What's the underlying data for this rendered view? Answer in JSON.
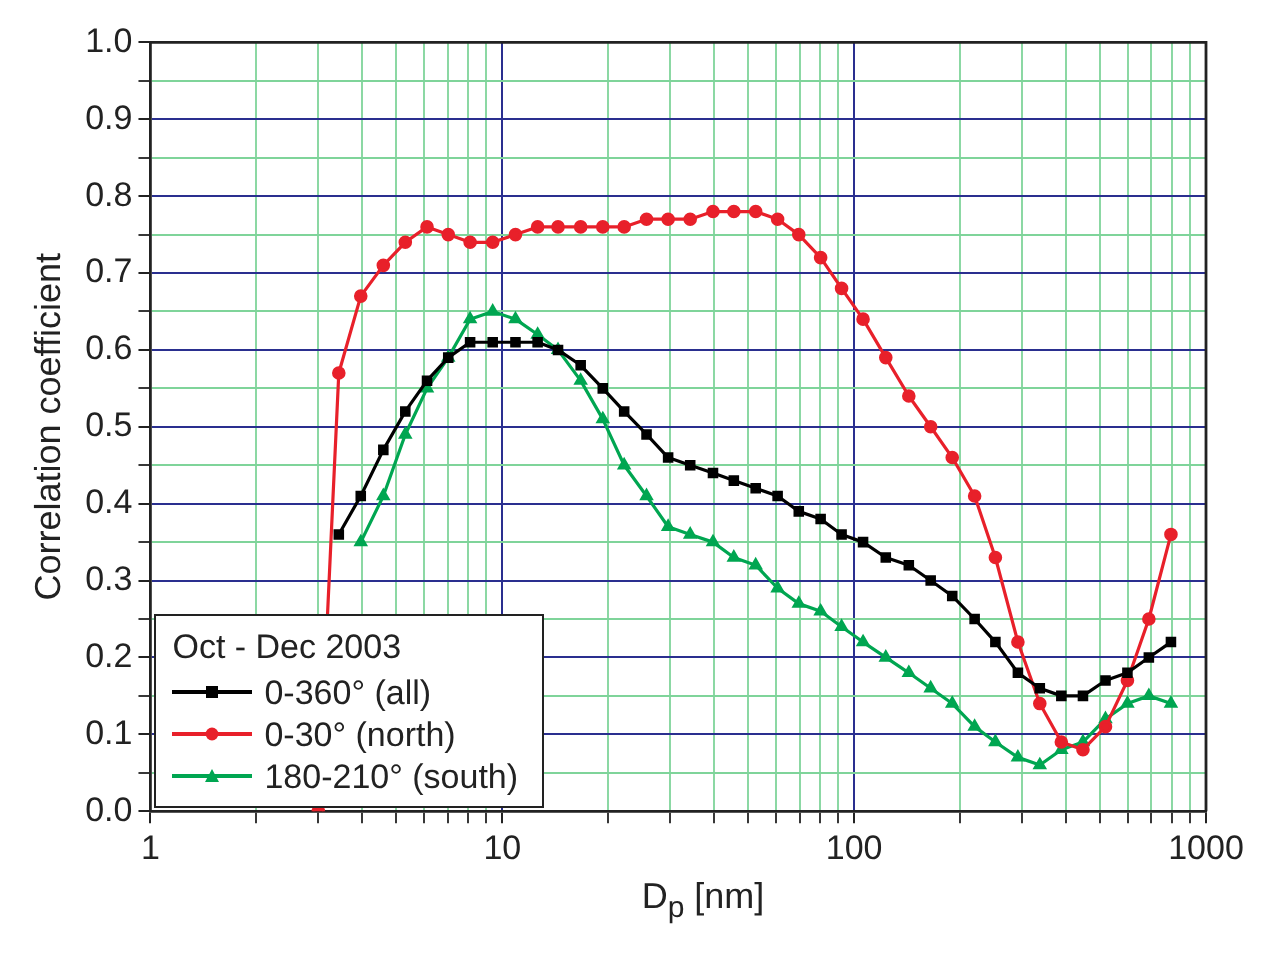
{
  "chart_data": {
    "type": "line",
    "xlabel": "D$_{p}$ [nm]",
    "ylabel": "Correlation coefficient",
    "legend_title": "Oct - Dec 2003",
    "legend": "bottom left",
    "grid": true,
    "log": "x",
    "x": [
      3.43,
      3.96,
      4.59,
      5.3,
      6.11,
      7.02,
      8.1,
      9.39,
      10.9,
      12.6,
      14.4,
      16.7,
      19.3,
      22.2,
      25.7,
      29.6,
      34.2,
      39.7,
      45.5,
      52.5,
      60.6,
      69.6,
      80.3,
      92.1,
      106,
      123,
      143,
      165,
      190,
      220,
      252,
      292,
      337,
      388,
      447,
      518,
      598,
      688,
      795
    ],
    "xlim": [
      1,
      1000
    ],
    "xticks": [
      1,
      {
        "value": 2,
        "label": null
      },
      {
        "value": 3,
        "label": null
      },
      {
        "value": 4,
        "label": null
      },
      {
        "value": 5,
        "label": null
      },
      {
        "value": 6,
        "label": null
      },
      {
        "value": 7,
        "label": null
      },
      {
        "value": 8,
        "label": null
      },
      {
        "value": 9,
        "label": null
      },
      10,
      {
        "value": 20,
        "label": null
      },
      {
        "value": 30,
        "label": null
      },
      {
        "value": 40,
        "label": null
      },
      {
        "value": 50,
        "label": null
      },
      {
        "value": 60,
        "label": null
      },
      {
        "value": 70,
        "label": null
      },
      {
        "value": 80,
        "label": null
      },
      {
        "value": 90,
        "label": null
      },
      100,
      {
        "value": 200,
        "label": null
      },
      {
        "value": 300,
        "label": null
      },
      {
        "value": 400,
        "label": null
      },
      {
        "value": 500,
        "label": null
      },
      {
        "value": 600,
        "label": null
      },
      {
        "value": 700,
        "label": null
      },
      {
        "value": 800,
        "label": null
      },
      {
        "value": 900,
        "label": null
      },
      1000
    ],
    "ylim": [
      0,
      1
    ],
    "yticks": [
      {
        "value": 0,
        "label": "0.0"
      },
      {
        "value": 0.05,
        "label": null
      },
      0.1,
      {
        "value": 0.15,
        "label": null
      },
      0.2,
      {
        "value": 0.25,
        "label": null
      },
      0.3,
      {
        "value": 0.35,
        "label": null
      },
      0.4,
      {
        "value": 0.45,
        "label": null
      },
      0.5,
      {
        "value": 0.55,
        "label": null
      },
      0.6,
      {
        "value": 0.65,
        "label": null
      },
      0.7,
      {
        "value": 0.75,
        "label": null
      },
      0.8,
      {
        "value": 0.85,
        "label": null
      },
      0.9,
      {
        "value": 0.95,
        "label": null
      },
      {
        "value": 1,
        "label": "1.0"
      }
    ],
    "series": [
      {
        "name": "0-360° (all)",
        "color": "#000000",
        "marker": "square",
        "values": [
          0.36,
          0.41,
          0.47,
          0.52,
          0.56,
          0.59,
          0.61,
          0.61,
          0.61,
          0.61,
          0.6,
          0.58,
          0.55,
          0.52,
          0.49,
          0.46,
          0.45,
          0.44,
          0.43,
          0.42,
          0.41,
          0.39,
          0.38,
          0.36,
          0.35,
          0.33,
          0.32,
          0.3,
          0.28,
          0.25,
          0.22,
          0.18,
          0.16,
          0.15,
          0.15,
          0.17,
          0.18,
          0.2,
          0.22
        ]
      },
      {
        "name": "0-30° (north)",
        "color": "#e8202a",
        "marker": "circle",
        "x": [
          3.0,
          3.43,
          3.96,
          4.59,
          5.3,
          6.11,
          7.02,
          8.1,
          9.39,
          10.9,
          12.6,
          14.4,
          16.7,
          19.3,
          22.2,
          25.7,
          29.6,
          34.2,
          39.7,
          45.5,
          52.5,
          60.6,
          69.6,
          80.3,
          92.1,
          106,
          123,
          143,
          165,
          190,
          220,
          252,
          292,
          337,
          388,
          447,
          518,
          598,
          688,
          795
        ],
        "values": [
          0,
          0.57,
          0.67,
          0.71,
          0.74,
          0.76,
          0.75,
          0.74,
          0.74,
          0.75,
          0.76,
          0.76,
          0.76,
          0.76,
          0.76,
          0.77,
          0.77,
          0.77,
          0.78,
          0.78,
          0.78,
          0.77,
          0.75,
          0.72,
          0.68,
          0.64,
          0.59,
          0.54,
          0.5,
          0.46,
          0.41,
          0.33,
          0.22,
          0.14,
          0.09,
          0.08,
          0.11,
          0.17,
          0.25,
          0.36
        ]
      },
      {
        "name": "180-210° (south)",
        "color": "#00a651",
        "marker": "triangle",
        "values": [
          null,
          0.35,
          0.41,
          0.49,
          0.55,
          0.59,
          0.64,
          0.65,
          0.64,
          0.62,
          0.6,
          0.56,
          0.51,
          0.45,
          0.41,
          0.37,
          0.36,
          0.35,
          0.33,
          0.32,
          0.29,
          0.27,
          0.26,
          0.24,
          0.22,
          0.2,
          0.18,
          0.16,
          0.14,
          0.11,
          0.09,
          0.07,
          0.06,
          0.08,
          0.09,
          0.12,
          0.14,
          0.15,
          0.14
        ]
      }
    ]
  }
}
